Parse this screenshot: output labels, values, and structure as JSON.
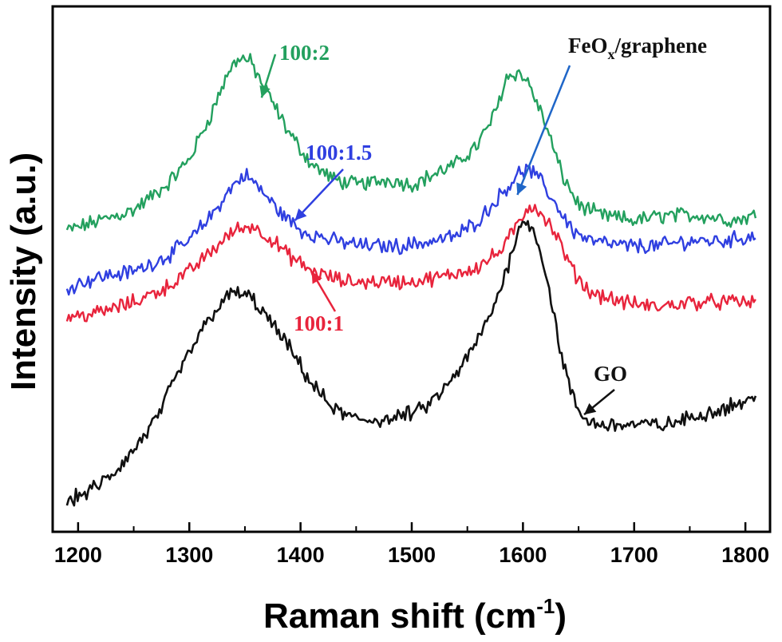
{
  "chart_data": {
    "type": "line",
    "xlabel": "Raman shift",
    "xlabel_unit": "(cm",
    "xlabel_unit_exp": "-1",
    "xlabel_unit_close": ")",
    "ylabel": "Intensity (a.u.)",
    "xlim": [
      1180,
      1820
    ],
    "ylim": [
      0,
      100
    ],
    "x_ticks": [
      "1200",
      "1300",
      "1400",
      "1500",
      "1600",
      "1700",
      "1800"
    ],
    "x_tick_values": [
      1200,
      1300,
      1400,
      1500,
      1600,
      1700,
      1800
    ],
    "y_ticks_labeled": false,
    "grid": false,
    "colors": {
      "GO": "#111111",
      "100:1": "#e8243c",
      "100:1.5": "#2f3fe0",
      "100:2": "#23a05e",
      "FeOx": "#1f66c8"
    },
    "series": [
      {
        "name": "100:2",
        "color": "#23a05e",
        "x": [
          1190,
          1220,
          1250,
          1280,
          1300,
          1320,
          1335,
          1345,
          1355,
          1370,
          1390,
          1410,
          1430,
          1450,
          1480,
          1500,
          1520,
          1540,
          1560,
          1575,
          1585,
          1595,
          1605,
          1620,
          1635,
          1650,
          1670,
          1700,
          1730,
          1760,
          1790,
          1810
        ],
        "y": [
          58,
          60,
          62,
          67,
          72,
          81,
          89,
          92,
          91,
          85,
          77,
          71,
          68,
          67,
          68,
          67,
          69,
          71,
          75,
          81,
          88,
          89,
          87,
          79,
          69,
          63,
          61,
          60,
          61,
          61,
          60,
          61
        ]
      },
      {
        "name": "100:1.5",
        "color": "#2f3fe0",
        "x": [
          1190,
          1220,
          1250,
          1280,
          1300,
          1320,
          1340,
          1350,
          1360,
          1380,
          1400,
          1430,
          1460,
          1490,
          1520,
          1540,
          1560,
          1580,
          1595,
          1605,
          1615,
          1630,
          1645,
          1660,
          1690,
          1720,
          1750,
          1780,
          1810
        ],
        "y": [
          47,
          49,
          50,
          53,
          56,
          61,
          67,
          69,
          67,
          62,
          58,
          56,
          55,
          55,
          56,
          57,
          60,
          65,
          69,
          70,
          68,
          63,
          58,
          56,
          55,
          55,
          56,
          56,
          57
        ]
      },
      {
        "name": "100:1",
        "color": "#e8243c",
        "x": [
          1190,
          1220,
          1250,
          1280,
          1300,
          1320,
          1340,
          1355,
          1370,
          1390,
          1410,
          1440,
          1470,
          1500,
          1530,
          1560,
          1580,
          1595,
          1605,
          1615,
          1630,
          1645,
          1660,
          1690,
          1720,
          1750,
          1780,
          1810
        ],
        "y": [
          41,
          42,
          44,
          47,
          50,
          54,
          58,
          59,
          57,
          53,
          50,
          48,
          48,
          48,
          49,
          51,
          54,
          59,
          63,
          62,
          57,
          50,
          46,
          44,
          43,
          44,
          44,
          44
        ]
      },
      {
        "name": "GO",
        "color": "#111111",
        "x": [
          1190,
          1210,
          1230,
          1250,
          1270,
          1290,
          1310,
          1325,
          1340,
          1355,
          1370,
          1390,
          1410,
          1430,
          1450,
          1480,
          1510,
          1530,
          1550,
          1570,
          1585,
          1595,
          1605,
          1615,
          1625,
          1635,
          1645,
          1655,
          1670,
          1700,
          1730,
          1760,
          1790,
          1810
        ],
        "y": [
          5,
          7,
          10,
          15,
          21,
          30,
          38,
          43,
          46,
          45,
          41,
          35,
          28,
          23,
          21,
          21,
          23,
          27,
          33,
          41,
          50,
          58,
          60,
          55,
          45,
          33,
          25,
          21,
          20,
          20,
          20,
          22,
          24,
          25
        ]
      }
    ],
    "annotations": [
      {
        "text": "100:2",
        "color": "#23a05e",
        "points_to": [
          1365,
          84
        ]
      },
      {
        "text": "100:1.5",
        "color": "#2f3fe0",
        "points_to": [
          1395,
          60
        ]
      },
      {
        "text": "100:1",
        "color": "#e8243c",
        "points_to": [
          1410,
          50
        ]
      },
      {
        "text": "FeO",
        "subscript": "x",
        "suffix": "/graphene",
        "color": "#111111",
        "points_to": [
          1595,
          65
        ]
      },
      {
        "text": "GO",
        "color": "#111111",
        "points_to": [
          1655,
          22
        ]
      }
    ]
  }
}
